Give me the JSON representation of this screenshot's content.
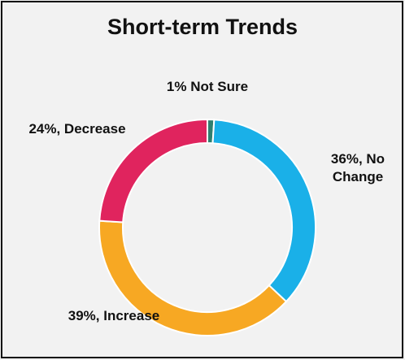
{
  "chart_data": {
    "type": "donut",
    "title": "Short-term Trends",
    "categories": [
      "Not Sure",
      "No Change",
      "Increase",
      "Decrease"
    ],
    "values": [
      1,
      36,
      39,
      24
    ],
    "value_labels": [
      "1% Not Sure",
      "36%, No Change",
      "39%, Increase",
      "24%, Decrease"
    ],
    "colors": [
      "#2f7f6f",
      "#1ab0e8",
      "#f7a823",
      "#e0245e"
    ]
  }
}
